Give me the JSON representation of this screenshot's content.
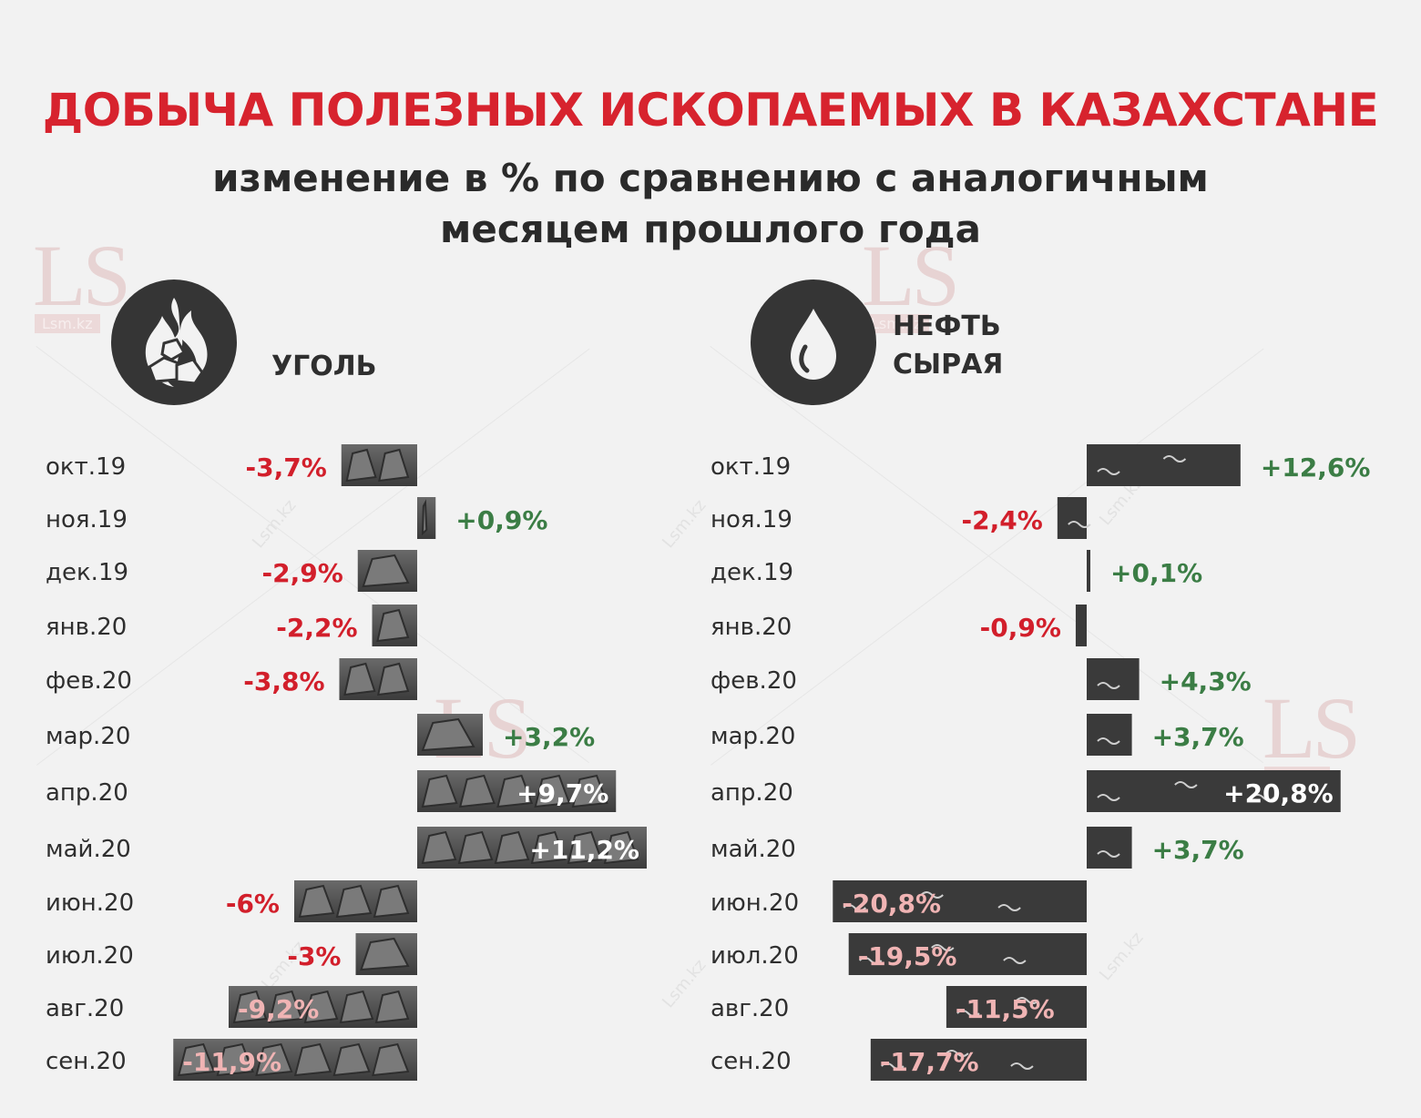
{
  "header": {
    "title": "ДОБЫЧА ПОЛЕЗНЫХ ИСКОПАЕМЫХ В КАЗАХСТАНЕ",
    "subtitle_line1": "изменение в % по сравнению с аналогичным",
    "subtitle_line2": "месяцем прошлого года"
  },
  "watermark": {
    "logo": "LS",
    "site": "Lsm.kz"
  },
  "panels": {
    "coal": {
      "label": "УГОЛЬ",
      "icon": "coal-fire-icon"
    },
    "oil": {
      "label_line1": "НЕФТЬ",
      "label_line2": "СЫРАЯ",
      "icon": "oil-drop-icon"
    }
  },
  "colors": {
    "positive": "#3b7d45",
    "negative": "#d21f2b",
    "label_on_bar": "#f0b4b4",
    "label_on_bar_pos": "#ffffff",
    "bar": "#3a3a3a",
    "icon_bg": "#353535"
  },
  "chart_data": [
    {
      "type": "bar",
      "orientation": "horizontal",
      "series": [
        {
          "name": "Уголь",
          "values": [
            -3.7,
            0.9,
            -2.9,
            -2.2,
            -3.8,
            3.2,
            9.7,
            11.2,
            -6,
            -3,
            -9.2,
            -11.9
          ]
        }
      ],
      "categories": [
        "окт.19",
        "ноя.19",
        "дек.19",
        "янв.20",
        "фев.20",
        "мар.20",
        "апр.20",
        "май.20",
        "июн.20",
        "июл.20",
        "авг.20",
        "сен.20"
      ],
      "labels": [
        "-3,7%",
        "+0,9%",
        "-2,9%",
        "-2,2%",
        "-3,8%",
        "+3,2%",
        "+9,7%",
        "+11,2%",
        "-6%",
        "-3%",
        "-9,2%",
        "-11,9%"
      ]
    },
    {
      "type": "bar",
      "orientation": "horizontal",
      "series": [
        {
          "name": "Нефть сырая",
          "values": [
            12.6,
            -2.4,
            0.1,
            -0.9,
            4.3,
            3.7,
            20.8,
            3.7,
            -20.8,
            -19.5,
            -11.5,
            -17.7
          ]
        }
      ],
      "categories": [
        "окт.19",
        "ноя.19",
        "дек.19",
        "янв.20",
        "фев.20",
        "мар.20",
        "апр.20",
        "май.20",
        "июн.20",
        "июл.20",
        "авг.20",
        "сен.20"
      ],
      "labels": [
        "+12,6%",
        "-2,4%",
        "+0,1%",
        "-0,9%",
        "+4,3%",
        "+3,7%",
        "+20,8%",
        "+3,7%",
        "-20,8%",
        "-19,5%",
        "-11,5%",
        "-17,7%"
      ]
    }
  ]
}
